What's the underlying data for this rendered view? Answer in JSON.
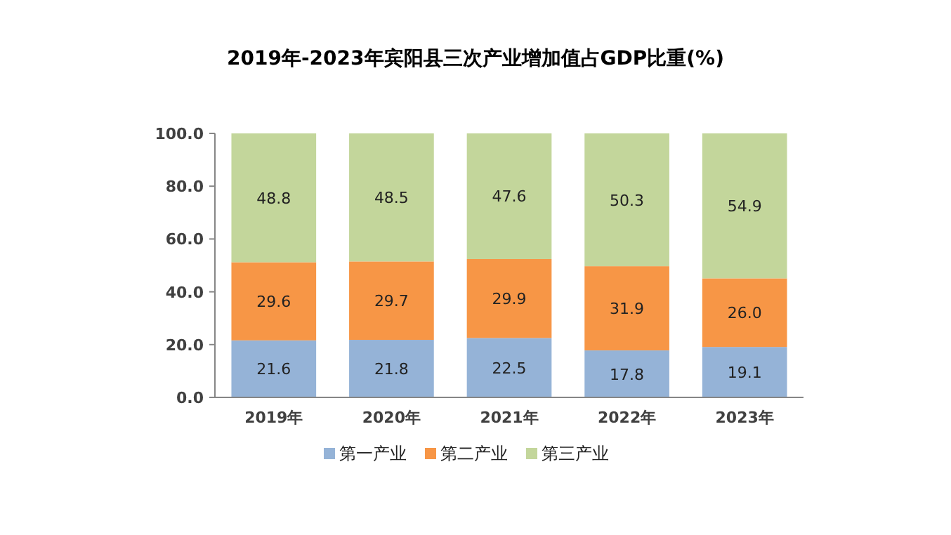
{
  "chart_data": {
    "type": "bar",
    "stacked": true,
    "title": "2019年-2023年宾阳县三次产业增加值占GDP比重(%)",
    "categories": [
      "2019年",
      "2020年",
      "2021年",
      "2022年",
      "2023年"
    ],
    "series": [
      {
        "name": "第一产业",
        "color": "#95b3d7",
        "values": [
          21.6,
          21.8,
          22.5,
          17.8,
          19.1
        ],
        "value_labels": [
          "21.6",
          "21.8",
          "22.5",
          "17.8",
          "19.1"
        ]
      },
      {
        "name": "第二产业",
        "color": "#f79646",
        "values": [
          29.6,
          29.7,
          29.9,
          31.9,
          26.0
        ],
        "value_labels": [
          "29.6",
          "29.7",
          "29.9",
          "31.9",
          "26.0"
        ]
      },
      {
        "name": "第三产业",
        "color": "#c3d69b",
        "values": [
          48.8,
          48.5,
          47.6,
          50.3,
          54.9
        ],
        "value_labels": [
          "48.8",
          "48.5",
          "47.6",
          "50.3",
          "54.9"
        ]
      }
    ],
    "ylim": [
      0,
      100
    ],
    "yticks": [
      {
        "value": 0,
        "label": "0.0"
      },
      {
        "value": 20,
        "label": "20.0"
      },
      {
        "value": 40,
        "label": "40.0"
      },
      {
        "value": 60,
        "label": "60.0"
      },
      {
        "value": 80,
        "label": "80.0"
      },
      {
        "value": 100,
        "label": "100.0"
      }
    ],
    "legend": "bottom",
    "grid": false
  }
}
